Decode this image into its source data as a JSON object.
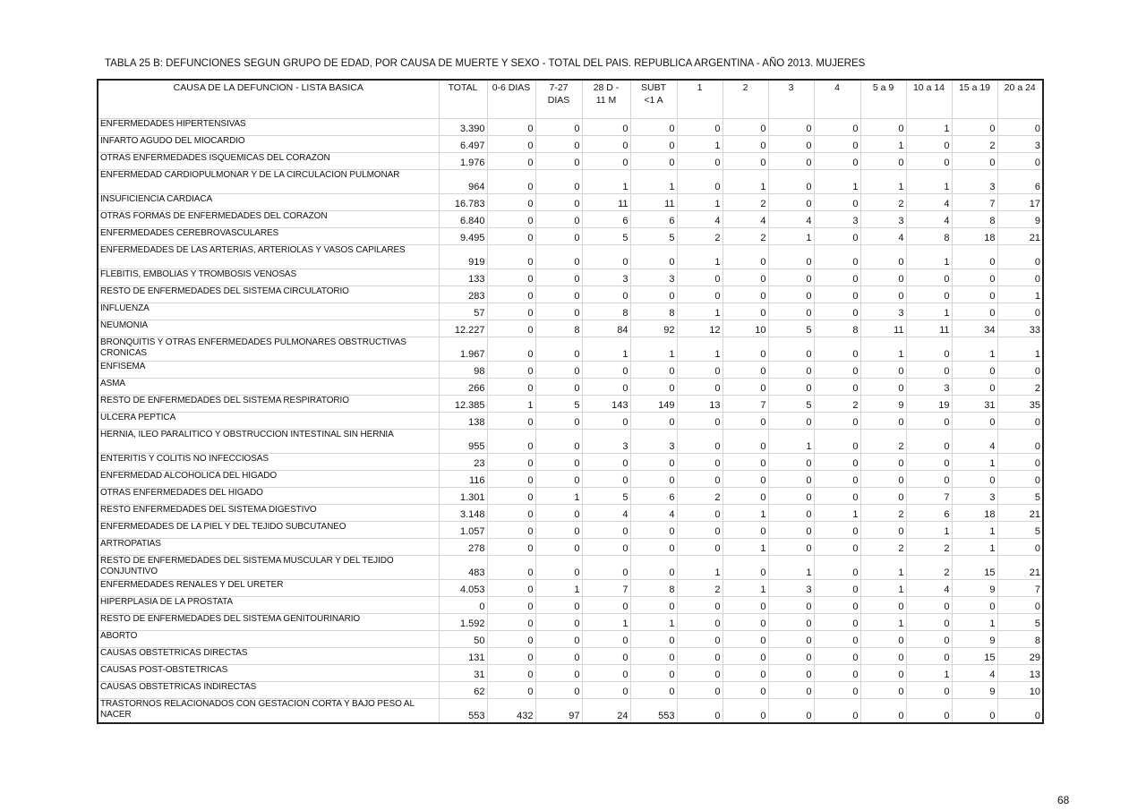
{
  "title": "TABLA 25 B: DEFUNCIONES SEGUN GRUPO DE EDAD, POR CAUSA DE MUERTE Y SEXO - TOTAL DEL PAIS.  REPUBLICA ARGENTINA - AÑO 2013. MUJERES",
  "columns": [
    "CAUSA DE LA DEFUNCION - LISTA BASICA",
    "TOTAL",
    "0-6 DIAS",
    "7-27 DIAS",
    "28 D - 11 M",
    "SUBT <1 A",
    "1",
    "2",
    "3",
    "4",
    "5 a 9",
    "10 a 14",
    "15 a 19",
    "20 a 24"
  ],
  "rows": [
    {
      "cause": "ENFERMEDADES HIPERTENSIVAS",
      "cells": [
        "3.390",
        "0",
        "0",
        "0",
        "0",
        "0",
        "0",
        "0",
        "0",
        "0",
        "1",
        "0",
        "0"
      ]
    },
    {
      "cause": "INFARTO AGUDO DEL MIOCARDIO",
      "cells": [
        "6.497",
        "0",
        "0",
        "0",
        "0",
        "1",
        "0",
        "0",
        "0",
        "1",
        "0",
        "2",
        "3"
      ]
    },
    {
      "cause": "OTRAS ENFERMEDADES ISQUEMICAS DEL CORAZON",
      "cells": [
        "1.976",
        "0",
        "0",
        "0",
        "0",
        "0",
        "0",
        "0",
        "0",
        "0",
        "0",
        "0",
        "0"
      ]
    },
    {
      "cause": "ENFERMEDAD CARDIOPULMONAR Y DE LA CIRCULACION PULMONAR",
      "cells": [
        "964",
        "0",
        "0",
        "1",
        "1",
        "0",
        "1",
        "0",
        "1",
        "1",
        "1",
        "3",
        "6"
      ]
    },
    {
      "cause": "INSUFICIENCIA CARDIACA",
      "cells": [
        "16.783",
        "0",
        "0",
        "11",
        "11",
        "1",
        "2",
        "0",
        "0",
        "2",
        "4",
        "7",
        "17"
      ]
    },
    {
      "cause": "OTRAS FORMAS DE ENFERMEDADES DEL CORAZON",
      "cells": [
        "6.840",
        "0",
        "0",
        "6",
        "6",
        "4",
        "4",
        "4",
        "3",
        "3",
        "4",
        "8",
        "9"
      ]
    },
    {
      "cause": "ENFERMEDADES CEREBROVASCULARES",
      "cells": [
        "9.495",
        "0",
        "0",
        "5",
        "5",
        "2",
        "2",
        "1",
        "0",
        "4",
        "8",
        "18",
        "21"
      ]
    },
    {
      "cause": "ENFERMEDADES DE LAS ARTERIAS, ARTERIOLAS Y VASOS CAPILARES",
      "cells": [
        "919",
        "0",
        "0",
        "0",
        "0",
        "1",
        "0",
        "0",
        "0",
        "0",
        "1",
        "0",
        "0"
      ]
    },
    {
      "cause": "FLEBITIS, EMBOLIAS Y TROMBOSIS VENOSAS",
      "cells": [
        "133",
        "0",
        "0",
        "3",
        "3",
        "0",
        "0",
        "0",
        "0",
        "0",
        "0",
        "0",
        "0"
      ]
    },
    {
      "cause": "RESTO DE ENFERMEDADES DEL SISTEMA CIRCULATORIO",
      "cells": [
        "283",
        "0",
        "0",
        "0",
        "0",
        "0",
        "0",
        "0",
        "0",
        "0",
        "0",
        "0",
        "1"
      ]
    },
    {
      "cause": "INFLUENZA",
      "cells": [
        "57",
        "0",
        "0",
        "8",
        "8",
        "1",
        "0",
        "0",
        "0",
        "3",
        "1",
        "0",
        "0"
      ]
    },
    {
      "cause": "NEUMONIA",
      "cells": [
        "12.227",
        "0",
        "8",
        "84",
        "92",
        "12",
        "10",
        "5",
        "8",
        "11",
        "11",
        "34",
        "33"
      ]
    },
    {
      "cause": "BRONQUITIS Y OTRAS ENFERMEDADES PULMONARES OBSTRUCTIVAS CRONICAS",
      "cells": [
        "1.967",
        "0",
        "0",
        "1",
        "1",
        "1",
        "0",
        "0",
        "0",
        "1",
        "0",
        "1",
        "1"
      ]
    },
    {
      "cause": "ENFISEMA",
      "cells": [
        "98",
        "0",
        "0",
        "0",
        "0",
        "0",
        "0",
        "0",
        "0",
        "0",
        "0",
        "0",
        "0"
      ]
    },
    {
      "cause": "ASMA",
      "cells": [
        "266",
        "0",
        "0",
        "0",
        "0",
        "0",
        "0",
        "0",
        "0",
        "0",
        "3",
        "0",
        "2"
      ]
    },
    {
      "cause": "RESTO DE ENFERMEDADES DEL SISTEMA RESPIRATORIO",
      "cells": [
        "12.385",
        "1",
        "5",
        "143",
        "149",
        "13",
        "7",
        "5",
        "2",
        "9",
        "19",
        "31",
        "35"
      ]
    },
    {
      "cause": "ULCERA PEPTICA",
      "cells": [
        "138",
        "0",
        "0",
        "0",
        "0",
        "0",
        "0",
        "0",
        "0",
        "0",
        "0",
        "0",
        "0"
      ]
    },
    {
      "cause": "HERNIA, ILEO PARALITICO Y OBSTRUCCION INTESTINAL SIN HERNIA",
      "cells": [
        "955",
        "0",
        "0",
        "3",
        "3",
        "0",
        "0",
        "1",
        "0",
        "2",
        "0",
        "4",
        "0"
      ]
    },
    {
      "cause": "ENTERITIS Y COLITIS NO INFECCIOSAS",
      "cells": [
        "23",
        "0",
        "0",
        "0",
        "0",
        "0",
        "0",
        "0",
        "0",
        "0",
        "0",
        "1",
        "0"
      ]
    },
    {
      "cause": "ENFERMEDAD ALCOHOLICA DEL HIGADO",
      "cells": [
        "116",
        "0",
        "0",
        "0",
        "0",
        "0",
        "0",
        "0",
        "0",
        "0",
        "0",
        "0",
        "0"
      ]
    },
    {
      "cause": "OTRAS ENFERMEDADES DEL HIGADO",
      "cells": [
        "1.301",
        "0",
        "1",
        "5",
        "6",
        "2",
        "0",
        "0",
        "0",
        "0",
        "7",
        "3",
        "5"
      ]
    },
    {
      "cause": "RESTO ENFERMEDADES DEL SISTEMA DIGESTIVO",
      "cells": [
        "3.148",
        "0",
        "0",
        "4",
        "4",
        "0",
        "1",
        "0",
        "1",
        "2",
        "6",
        "18",
        "21"
      ]
    },
    {
      "cause": "ENFERMEDADES DE LA PIEL Y DEL TEJIDO SUBCUTANEO",
      "cells": [
        "1.057",
        "0",
        "0",
        "0",
        "0",
        "0",
        "0",
        "0",
        "0",
        "0",
        "1",
        "1",
        "5"
      ]
    },
    {
      "cause": "ARTROPATIAS",
      "cells": [
        "278",
        "0",
        "0",
        "0",
        "0",
        "0",
        "1",
        "0",
        "0",
        "2",
        "2",
        "1",
        "0"
      ]
    },
    {
      "cause": "RESTO DE ENFERMEDADES DEL SISTEMA MUSCULAR Y DEL TEJIDO CONJUNTIVO",
      "cells": [
        "483",
        "0",
        "0",
        "0",
        "0",
        "1",
        "0",
        "1",
        "0",
        "1",
        "2",
        "15",
        "21"
      ]
    },
    {
      "cause": "ENFERMEDADES RENALES Y DEL URETER",
      "cells": [
        "4.053",
        "0",
        "1",
        "7",
        "8",
        "2",
        "1",
        "3",
        "0",
        "1",
        "4",
        "9",
        "7"
      ]
    },
    {
      "cause": "HIPERPLASIA DE LA PROSTATA",
      "cells": [
        "0",
        "0",
        "0",
        "0",
        "0",
        "0",
        "0",
        "0",
        "0",
        "0",
        "0",
        "0",
        "0"
      ]
    },
    {
      "cause": "RESTO DE ENFERMEDADES DEL SISTEMA GENITOURINARIO",
      "cells": [
        "1.592",
        "0",
        "0",
        "1",
        "1",
        "0",
        "0",
        "0",
        "0",
        "1",
        "0",
        "1",
        "5"
      ]
    },
    {
      "cause": "ABORTO",
      "cells": [
        "50",
        "0",
        "0",
        "0",
        "0",
        "0",
        "0",
        "0",
        "0",
        "0",
        "0",
        "9",
        "8"
      ]
    },
    {
      "cause": "CAUSAS OBSTETRICAS DIRECTAS",
      "cells": [
        "131",
        "0",
        "0",
        "0",
        "0",
        "0",
        "0",
        "0",
        "0",
        "0",
        "0",
        "15",
        "29"
      ]
    },
    {
      "cause": "CAUSAS POST-OBSTETRICAS",
      "cells": [
        "31",
        "0",
        "0",
        "0",
        "0",
        "0",
        "0",
        "0",
        "0",
        "0",
        "1",
        "4",
        "13"
      ]
    },
    {
      "cause": "CAUSAS OBSTETRICAS INDIRECTAS",
      "cells": [
        "62",
        "0",
        "0",
        "0",
        "0",
        "0",
        "0",
        "0",
        "0",
        "0",
        "0",
        "9",
        "10"
      ]
    },
    {
      "cause": "TRASTORNOS RELACIONADOS CON GESTACION CORTA Y BAJO PESO AL NACER",
      "cells": [
        "553",
        "432",
        "97",
        "24",
        "553",
        "0",
        "0",
        "0",
        "0",
        "0",
        "0",
        "0",
        "0"
      ]
    }
  ],
  "page_number": "68"
}
